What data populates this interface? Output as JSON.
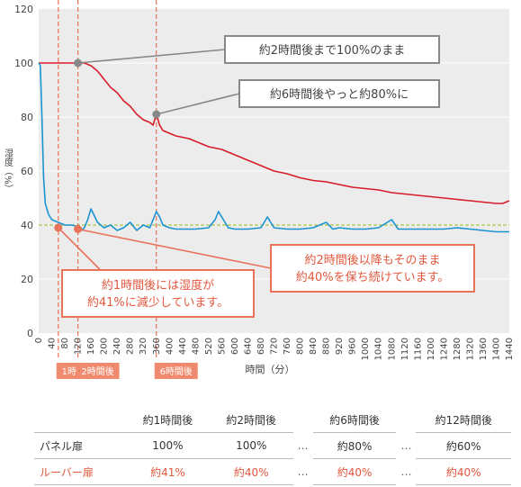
{
  "chart_data": {
    "type": "line",
    "ylabel": "湿度（%）",
    "xlabel": "時間（分）",
    "ylim": [
      0,
      120
    ],
    "xlim": [
      0,
      1440
    ],
    "y_ticks": [
      0,
      20,
      40,
      60,
      80,
      100,
      120
    ],
    "x_ticks": [
      0,
      40,
      80,
      120,
      160,
      200,
      240,
      280,
      320,
      360,
      400,
      440,
      480,
      520,
      560,
      600,
      640,
      680,
      720,
      760,
      800,
      840,
      880,
      920,
      960,
      1000,
      1040,
      1080,
      1120,
      1160,
      1200,
      1240,
      1280,
      1320,
      1360,
      1400,
      1440
    ],
    "reference_line_y": 40,
    "marker_lines_x": [
      60,
      120,
      360
    ],
    "series": [
      {
        "color": "#d81c2a",
        "x": [
          0,
          20,
          40,
          60,
          80,
          100,
          120,
          140,
          160,
          180,
          200,
          220,
          240,
          260,
          280,
          300,
          320,
          340,
          350,
          355,
          360,
          370,
          380,
          400,
          420,
          440,
          460,
          480,
          500,
          520,
          540,
          560,
          580,
          600,
          620,
          640,
          660,
          680,
          700,
          720,
          760,
          800,
          840,
          880,
          920,
          960,
          1000,
          1040,
          1080,
          1120,
          1160,
          1200,
          1240,
          1280,
          1320,
          1360,
          1400,
          1420,
          1440
        ],
        "y": [
          100,
          100,
          100,
          100,
          100,
          100,
          100,
          100,
          99,
          97,
          94,
          91,
          89,
          86,
          84,
          81,
          79,
          78,
          77,
          79,
          81,
          77,
          75,
          74,
          73,
          72.5,
          72,
          71,
          70,
          69,
          68.5,
          68,
          67,
          66,
          65,
          64,
          63,
          62,
          61,
          60,
          59,
          57.5,
          56.5,
          56,
          55,
          54,
          53.5,
          53,
          52,
          51.5,
          51,
          50.5,
          50,
          49.5,
          49,
          48.5,
          48,
          48,
          49
        ]
      },
      {
        "color": "#1a93d2",
        "x": [
          0,
          5,
          10,
          15,
          20,
          30,
          40,
          60,
          80,
          100,
          120,
          130,
          140,
          150,
          160,
          180,
          200,
          220,
          240,
          260,
          280,
          300,
          320,
          340,
          360,
          370,
          380,
          400,
          420,
          440,
          480,
          520,
          540,
          550,
          560,
          580,
          600,
          640,
          680,
          700,
          720,
          760,
          800,
          840,
          880,
          900,
          920,
          960,
          1000,
          1040,
          1080,
          1100,
          1120,
          1160,
          1200,
          1240,
          1280,
          1320,
          1360,
          1400,
          1440
        ],
        "y": [
          100,
          99,
          80,
          58,
          48,
          44,
          42,
          41,
          40,
          40,
          39.5,
          38,
          39,
          42,
          46,
          41,
          39,
          40,
          38,
          39,
          41,
          38,
          40,
          39,
          45,
          43,
          40,
          39,
          38.5,
          38.5,
          38.5,
          39,
          42,
          45,
          43,
          39,
          38.5,
          38.5,
          39,
          43,
          39,
          38.5,
          38.5,
          39,
          41,
          38.5,
          39,
          38.5,
          38.5,
          39,
          42,
          38.5,
          38.5,
          38.5,
          38.5,
          38.5,
          39,
          38.5,
          38,
          37.5,
          37.5
        ]
      }
    ],
    "annotations": [
      {
        "text": "約2時間後まで100%のまま",
        "style": "gray",
        "point": [
          120,
          100
        ]
      },
      {
        "text": "約6時間後やっと約80%に",
        "style": "gray",
        "point": [
          360,
          81
        ]
      },
      {
        "lines": [
          "約2時間後以降もそのまま",
          "約40%を保ち続けています。"
        ],
        "style": "orange",
        "point": [
          120,
          38.5
        ]
      },
      {
        "lines": [
          "約1時間後には湿度が",
          "約41%に減少しています。"
        ],
        "style": "orange",
        "point": [
          60,
          39
        ]
      }
    ],
    "badges": [
      {
        "text": "1時間後",
        "x": 60
      },
      {
        "text": "2時間後",
        "x": 120
      },
      {
        "text": "6時間後",
        "x": 360
      }
    ]
  },
  "table": {
    "headers": [
      "約1時間後",
      "約2時間後",
      "約6時間後",
      "約12時間後"
    ],
    "gap": "…",
    "rows": [
      {
        "label": "パネル扉",
        "values": [
          "100%",
          "100%",
          "約80%",
          "約60%"
        ]
      },
      {
        "label": "ルーバー扉",
        "values": [
          "約41%",
          "約40%",
          "約40%",
          "約40%"
        ]
      }
    ]
  }
}
